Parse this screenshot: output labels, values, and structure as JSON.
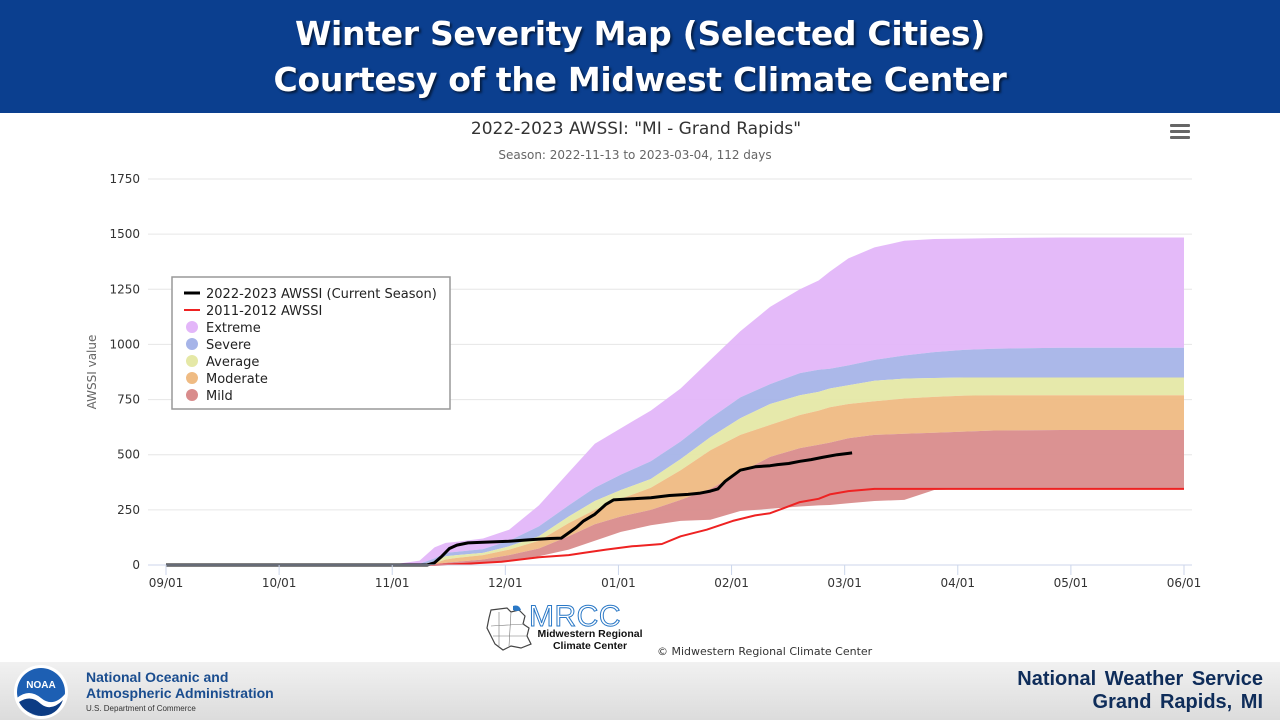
{
  "banner": {
    "line1": "Winter Severity Map (Selected Cities)",
    "line2": "Courtesy of the Midwest Climate Center"
  },
  "chart_data": {
    "type": "area",
    "title": "2022-2023 AWSSI: \"MI - Grand Rapids\"",
    "subtitle": "Season: 2022-11-13 to 2023-03-04, 112 days",
    "ylabel": "AWSSI value",
    "ylim": [
      0,
      1750
    ],
    "yticks": [
      0,
      250,
      500,
      750,
      1000,
      1250,
      1500,
      1750
    ],
    "xticks": [
      "09/01",
      "10/01",
      "11/01",
      "12/01",
      "01/01",
      "02/01",
      "03/01",
      "04/01",
      "05/01",
      "06/01"
    ],
    "grid": true,
    "legend_position": "upper-left",
    "legend": [
      {
        "label": "2022-2023 AWSSI (Current Season)",
        "kind": "line",
        "color": "#000000"
      },
      {
        "label": "2011-2012 AWSSI",
        "kind": "line",
        "color": "#ee2222"
      },
      {
        "label": "Extreme",
        "kind": "area",
        "color": "#e3b6f9"
      },
      {
        "label": "Severe",
        "kind": "area",
        "color": "#a6b4e8"
      },
      {
        "label": "Average",
        "kind": "area",
        "color": "#e5e8a6"
      },
      {
        "label": "Moderate",
        "kind": "area",
        "color": "#efbb83"
      },
      {
        "label": "Mild",
        "kind": "area",
        "color": "#d98c8c"
      }
    ],
    "band_days": [
      0,
      55,
      62,
      68,
      72,
      75,
      78,
      85,
      92,
      100,
      108,
      115,
      122,
      130,
      138,
      146,
      154,
      162,
      170,
      175,
      178,
      183,
      190,
      198,
      206,
      214,
      222,
      240,
      260,
      273
    ],
    "bands": {
      "Extreme": [
        0,
        0,
        5,
        20,
        80,
        100,
        105,
        120,
        160,
        270,
        420,
        550,
        620,
        700,
        800,
        930,
        1060,
        1170,
        1250,
        1290,
        1330,
        1390,
        1440,
        1470,
        1478,
        1480,
        1482,
        1485,
        1485,
        1485
      ],
      "Severe": [
        0,
        0,
        0,
        5,
        30,
        55,
        60,
        72,
        110,
        175,
        270,
        350,
        410,
        470,
        560,
        665,
        760,
        820,
        870,
        885,
        890,
        905,
        930,
        950,
        965,
        975,
        980,
        985,
        985,
        985
      ],
      "Average": [
        0,
        0,
        0,
        2,
        15,
        40,
        45,
        55,
        85,
        130,
        220,
        290,
        340,
        390,
        480,
        580,
        665,
        730,
        770,
        785,
        800,
        815,
        835,
        845,
        848,
        850,
        850,
        850,
        850,
        850
      ],
      "Moderate": [
        0,
        0,
        0,
        1,
        8,
        25,
        32,
        45,
        70,
        110,
        190,
        250,
        300,
        350,
        430,
        520,
        590,
        635,
        680,
        700,
        715,
        730,
        742,
        755,
        762,
        768,
        770,
        770,
        770,
        770
      ],
      "Mild": [
        0,
        0,
        0,
        0,
        3,
        10,
        15,
        25,
        45,
        75,
        130,
        185,
        220,
        250,
        295,
        345,
        420,
        490,
        530,
        545,
        555,
        575,
        590,
        595,
        600,
        605,
        610,
        612,
        612,
        612
      ],
      "Base": [
        0,
        0,
        0,
        0,
        0,
        0,
        3,
        8,
        20,
        40,
        70,
        110,
        150,
        180,
        200,
        205,
        245,
        255,
        265,
        270,
        272,
        280,
        290,
        295,
        340,
        345,
        345,
        345,
        345,
        345
      ]
    },
    "series": [
      {
        "name": "2022-2023 AWSSI (Current Season)",
        "color": "#000000",
        "days": [
          0,
          70,
          72,
          74,
          76,
          78,
          81,
          85,
          92,
          98,
          103,
          106,
          110,
          112,
          115,
          118,
          120,
          125,
          130,
          135,
          140,
          143,
          146,
          148,
          150,
          154,
          158,
          162,
          164,
          167,
          170,
          173,
          176,
          180,
          183,
          184
        ],
        "values": [
          0,
          0,
          10,
          40,
          75,
          90,
          100,
          103,
          108,
          115,
          120,
          122,
          170,
          200,
          230,
          275,
          295,
          300,
          305,
          315,
          320,
          325,
          335,
          345,
          380,
          430,
          445,
          450,
          455,
          460,
          470,
          478,
          488,
          500,
          506,
          508
        ]
      },
      {
        "name": "2011-2012 AWSSI",
        "color": "#ee2222",
        "days": [
          0,
          72,
          80,
          90,
          100,
          108,
          112,
          118,
          125,
          133,
          138,
          145,
          152,
          158,
          162,
          166,
          170,
          175,
          178,
          183,
          190,
          200,
          273
        ],
        "values": [
          0,
          0,
          5,
          15,
          35,
          45,
          55,
          70,
          85,
          95,
          130,
          160,
          200,
          225,
          235,
          260,
          285,
          300,
          320,
          335,
          345,
          345,
          345
        ]
      }
    ]
  },
  "mrcc": {
    "logo_text": "MRCC",
    "line1": "Midwestern Regional",
    "line2": "Climate Center",
    "copyright": "© Midwestern Regional Climate Center"
  },
  "footer": {
    "noaa_line1": "National Oceanic and",
    "noaa_line2": "Atmospheric Administration",
    "noaa_line3": "U.S. Department of Commerce",
    "noaa_logo_text": "NOAA",
    "nws_line1": "National Weather Service",
    "nws_line2": "Grand Rapids, MI"
  }
}
